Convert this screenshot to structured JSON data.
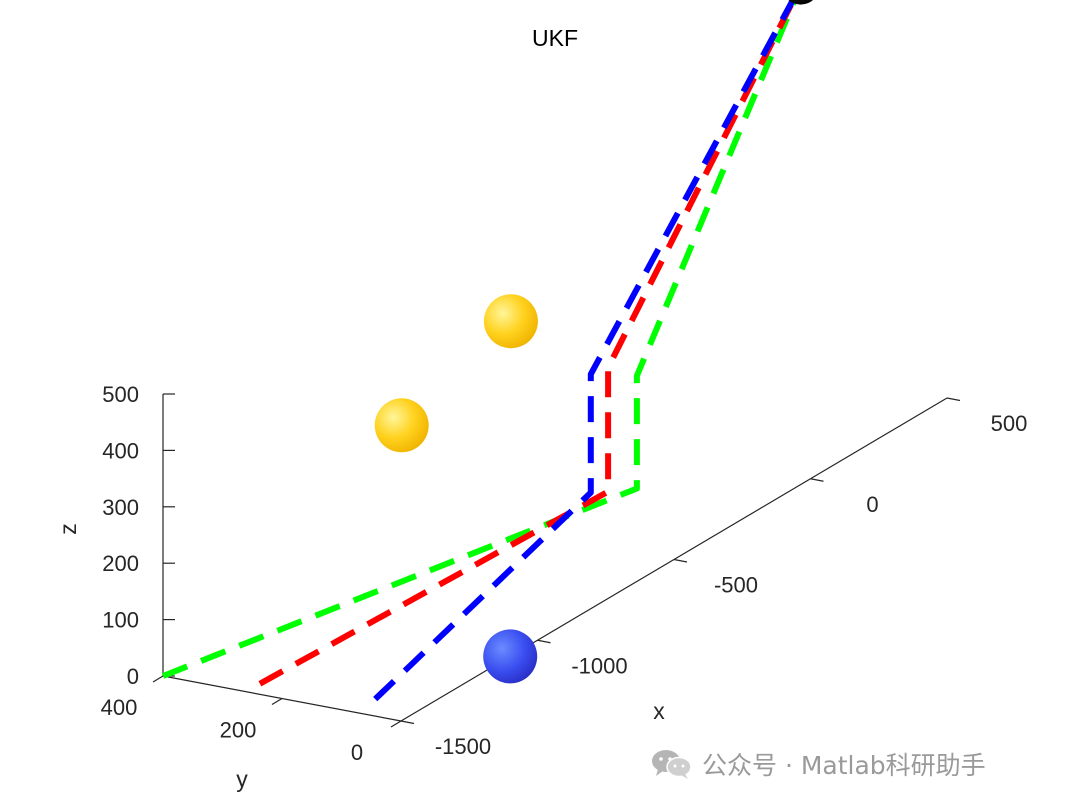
{
  "chart_data": {
    "type": "3d-line",
    "title": "UKF",
    "xlabel": "x",
    "ylabel": "y",
    "zlabel": "z",
    "xlim": [
      -1500,
      500
    ],
    "ylim": [
      0,
      400
    ],
    "zlim": [
      0,
      500
    ],
    "x_ticks": [
      {
        "value": -1500,
        "label": "-1500"
      },
      {
        "value": -1000,
        "label": "-1000"
      },
      {
        "value": -500,
        "label": "-500"
      },
      {
        "value": 0,
        "label": "0"
      },
      {
        "value": 500,
        "label": "500"
      }
    ],
    "y_ticks": [
      {
        "value": 0,
        "label": "0"
      },
      {
        "value": 200,
        "label": "200"
      },
      {
        "value": 400,
        "label": "400"
      }
    ],
    "z_ticks": [
      {
        "value": 0,
        "label": "0"
      },
      {
        "value": 100,
        "label": "100"
      },
      {
        "value": 200,
        "label": "200"
      },
      {
        "value": 300,
        "label": "300"
      },
      {
        "value": 400,
        "label": "400"
      },
      {
        "value": 500,
        "label": "500"
      }
    ],
    "series": [
      {
        "color": "#00ff00",
        "style": "dashed",
        "points": [
          {
            "x": -1500,
            "y": 400,
            "z": 0
          },
          {
            "x": -200,
            "y": 200,
            "z": 0
          },
          {
            "x": -200,
            "y": 200,
            "z": 200
          },
          {
            "x": 400,
            "y": 200,
            "z": 720
          }
        ]
      },
      {
        "color": "#ff0000",
        "style": "dashed",
        "points": [
          {
            "x": -1450,
            "y": 260,
            "z": 0
          },
          {
            "x": -240,
            "y": 230,
            "z": 0
          },
          {
            "x": -240,
            "y": 230,
            "z": 220
          },
          {
            "x": 400,
            "y": 200,
            "z": 720
          }
        ]
      },
      {
        "color": "#0000ff",
        "style": "dashed",
        "points": [
          {
            "x": -1420,
            "y": 80,
            "z": 0
          },
          {
            "x": -260,
            "y": 250,
            "z": 0
          },
          {
            "x": -260,
            "y": 250,
            "z": 210
          },
          {
            "x": 400,
            "y": 200,
            "z": 720
          }
        ]
      }
    ],
    "spheres": [
      {
        "color": "#ffd21f",
        "x": -800,
        "y": 320,
        "z": 260
      },
      {
        "color": "#ffd21f",
        "x": -400,
        "y": 320,
        "z": 330
      },
      {
        "color": "#3a4ef0",
        "x": -1100,
        "y": 0,
        "z": 0
      },
      {
        "color": "#000000",
        "x": 400,
        "y": 200,
        "z": 720
      }
    ]
  },
  "watermark": {
    "icon": "wechat-icon",
    "text": "公众号 · Matlab科研助手"
  }
}
